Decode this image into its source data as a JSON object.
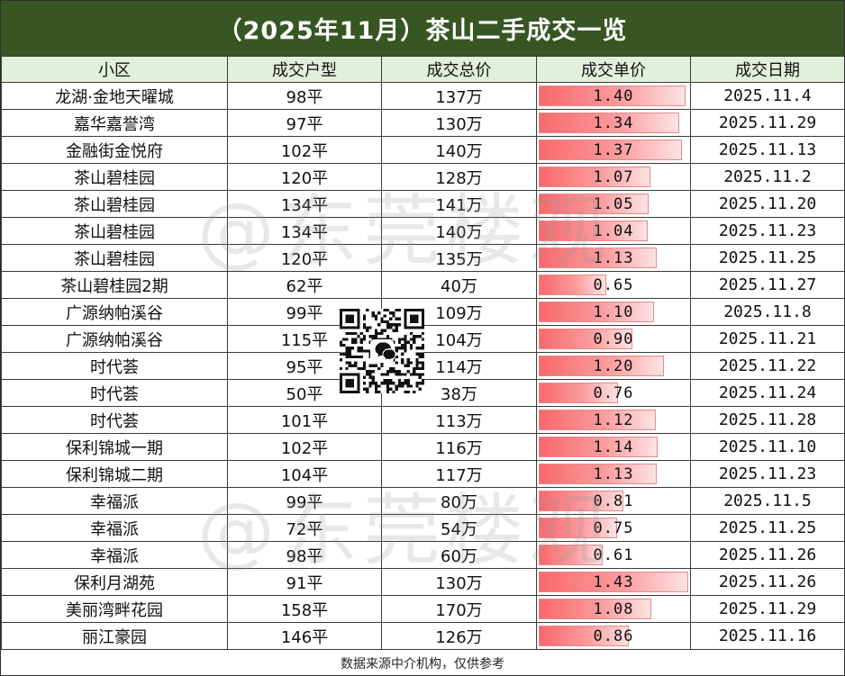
{
  "title": "（2025年11月）茶山二手成交一览",
  "headers": [
    "小区",
    "成交户型",
    "成交总价",
    "成交单价",
    "成交日期"
  ],
  "rows": [
    {
      "community": "龙湖·金地天曜城",
      "layout": "98平",
      "total": "137万",
      "unit": "1.40",
      "date": "2025.11.4"
    },
    {
      "community": "嘉华嘉誉湾",
      "layout": "97平",
      "total": "130万",
      "unit": "1.34",
      "date": "2025.11.29"
    },
    {
      "community": "金融街金悦府",
      "layout": "102平",
      "total": "140万",
      "unit": "1.37",
      "date": "2025.11.13"
    },
    {
      "community": "茶山碧桂园",
      "layout": "120平",
      "total": "128万",
      "unit": "1.07",
      "date": "2025.11.2"
    },
    {
      "community": "茶山碧桂园",
      "layout": "134平",
      "total": "141万",
      "unit": "1.05",
      "date": "2025.11.20"
    },
    {
      "community": "茶山碧桂园",
      "layout": "134平",
      "total": "140万",
      "unit": "1.04",
      "date": "2025.11.23"
    },
    {
      "community": "茶山碧桂园",
      "layout": "120平",
      "total": "135万",
      "unit": "1.13",
      "date": "2025.11.25"
    },
    {
      "community": "茶山碧桂园2期",
      "layout": "62平",
      "total": "40万",
      "unit": "0.65",
      "date": "2025.11.27"
    },
    {
      "community": "广源纳帕溪谷",
      "layout": "99平",
      "total": "109万",
      "unit": "1.10",
      "date": "2025.11.8"
    },
    {
      "community": "广源纳帕溪谷",
      "layout": "115平",
      "total": "104万",
      "unit": "0.90",
      "date": "2025.11.21"
    },
    {
      "community": "时代荟",
      "layout": "95平",
      "total": "114万",
      "unit": "1.20",
      "date": "2025.11.22"
    },
    {
      "community": "时代荟",
      "layout": "50平",
      "total": "38万",
      "unit": "0.76",
      "date": "2025.11.24"
    },
    {
      "community": "时代荟",
      "layout": "101平",
      "total": "113万",
      "unit": "1.12",
      "date": "2025.11.28"
    },
    {
      "community": "保利锦城一期",
      "layout": "102平",
      "total": "116万",
      "unit": "1.14",
      "date": "2025.11.10"
    },
    {
      "community": "保利锦城二期",
      "layout": "104平",
      "total": "117万",
      "unit": "1.13",
      "date": "2025.11.23"
    },
    {
      "community": "幸福派",
      "layout": "99平",
      "total": "80万",
      "unit": "0.81",
      "date": "2025.11.5"
    },
    {
      "community": "幸福派",
      "layout": "72平",
      "total": "54万",
      "unit": "0.75",
      "date": "2025.11.25"
    },
    {
      "community": "幸福派",
      "layout": "98平",
      "total": "60万",
      "unit": "0.61",
      "date": "2025.11.26"
    },
    {
      "community": "保利月湖苑",
      "layout": "91平",
      "total": "130万",
      "unit": "1.43",
      "date": "2025.11.26"
    },
    {
      "community": "美丽湾畔花园",
      "layout": "158平",
      "total": "170万",
      "unit": "1.08",
      "date": "2025.11.29"
    },
    {
      "community": "丽江豪园",
      "layout": "146平",
      "total": "126万",
      "unit": "0.86",
      "date": "2025.11.16"
    }
  ],
  "footer": "数据来源中介机构，仅供参考",
  "watermark": "@东莞楼观",
  "colors": {
    "title_bg": "#375623",
    "header_bg": "#e2efda",
    "bar": "#f8696b"
  },
  "icons": [
    "wechat-qr-code-icon"
  ]
}
